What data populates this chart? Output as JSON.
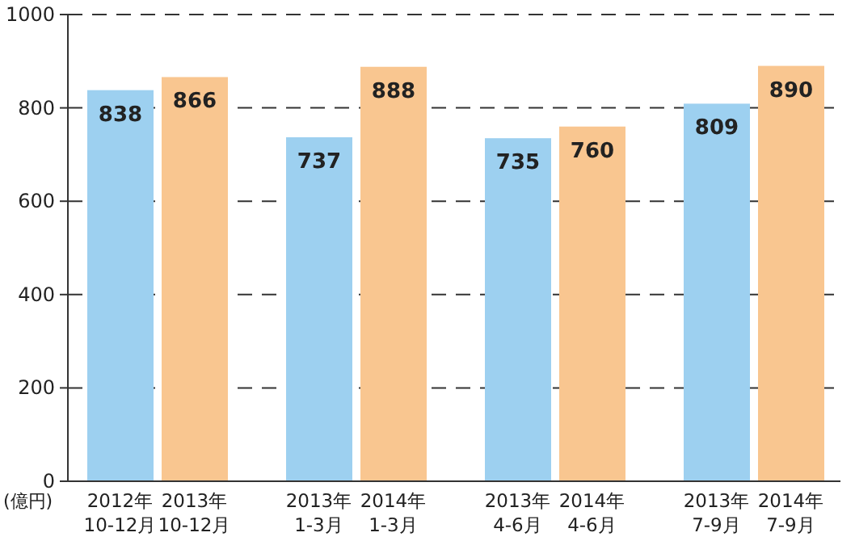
{
  "chart_data": {
    "type": "bar",
    "ylabel": "(億円)",
    "categories": [
      "2012年\n10-12月",
      "2013年\n10-12月",
      "2013年\n1-3月",
      "2014年\n1-3月",
      "2013年\n4-6月",
      "2014年\n4-6月",
      "2013年\n7-9月",
      "2014年\n7-9月"
    ],
    "values": [
      838,
      866,
      737,
      888,
      735,
      760,
      809,
      890
    ],
    "colors": [
      "#9dd0f0",
      "#f9c690",
      "#9dd0f0",
      "#f9c690",
      "#9dd0f0",
      "#f9c690",
      "#9dd0f0",
      "#f9c690"
    ],
    "ylim": [
      0,
      1000
    ],
    "yticks": [
      0,
      200,
      400,
      600,
      800,
      1000
    ],
    "grid": "y",
    "data_labels": true
  }
}
